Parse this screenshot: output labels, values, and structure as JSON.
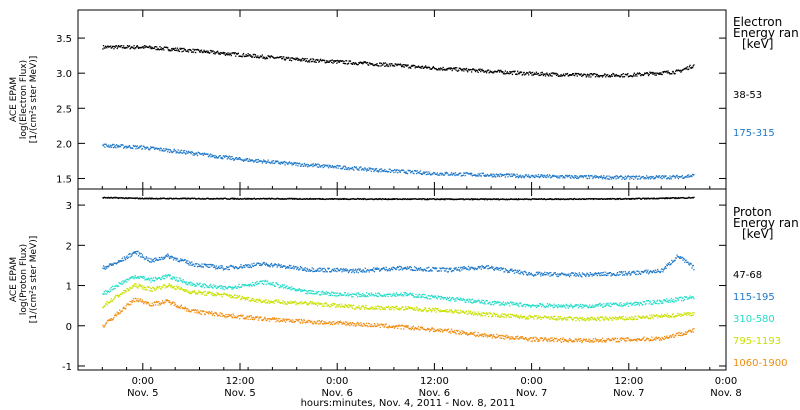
{
  "chart_data": [
    {
      "type": "scatter",
      "panel": "electron",
      "ylabel_lines": [
        "ACE EPAM",
        "log(Electron Flux)",
        "[1/(cm²s ster MeV)]"
      ],
      "ylim": [
        1.35,
        3.9
      ],
      "yticks": [
        1.5,
        2.0,
        2.5,
        3.0,
        3.5
      ],
      "ytick_labels": [
        "1.5",
        "2.0",
        "2.5",
        "3.0",
        "3.5"
      ],
      "legend_title_lines": [
        "Electron",
        "Energy ran",
        "[keV]"
      ],
      "series": [
        {
          "name": "38-53",
          "color": "#000000",
          "points": [
            [
              -5,
              3.38
            ],
            [
              0,
              3.38
            ],
            [
              6,
              3.33
            ],
            [
              12,
              3.27
            ],
            [
              18,
              3.21
            ],
            [
              24,
              3.17
            ],
            [
              30,
              3.13
            ],
            [
              36,
              3.08
            ],
            [
              42,
              3.04
            ],
            [
              48,
              3.0
            ],
            [
              54,
              2.98
            ],
            [
              60,
              2.98
            ],
            [
              66,
              3.03
            ],
            [
              68,
              3.12
            ]
          ]
        },
        {
          "name": "175-315",
          "color": "#1f78c8",
          "points": [
            [
              -5,
              1.98
            ],
            [
              0,
              1.95
            ],
            [
              6,
              1.87
            ],
            [
              12,
              1.78
            ],
            [
              18,
              1.72
            ],
            [
              24,
              1.67
            ],
            [
              30,
              1.62
            ],
            [
              36,
              1.58
            ],
            [
              42,
              1.56
            ],
            [
              48,
              1.54
            ],
            [
              54,
              1.53
            ],
            [
              60,
              1.52
            ],
            [
              66,
              1.53
            ],
            [
              68,
              1.55
            ]
          ]
        }
      ]
    },
    {
      "type": "scatter",
      "panel": "proton",
      "ylabel_lines": [
        "ACE EPAM",
        "log(Proton Flux)",
        "[1/(cm²s ster MeV)]"
      ],
      "ylim": [
        -1.1,
        3.4
      ],
      "yticks": [
        -1,
        0,
        1,
        2,
        3
      ],
      "ytick_labels": [
        "-1",
        "0",
        "1",
        "2",
        "3"
      ],
      "legend_title_lines": [
        "Proton",
        "Energy ran",
        "[keV]"
      ],
      "series": [
        {
          "name": "47-68",
          "color": "#000000",
          "points": [
            [
              -5,
              3.2
            ],
            [
              0,
              3.18
            ],
            [
              20,
              3.17
            ],
            [
              40,
              3.16
            ],
            [
              60,
              3.17
            ],
            [
              68,
              3.2
            ]
          ]
        },
        {
          "name": "115-195",
          "color": "#1f78c8",
          "points": [
            [
              -5,
              1.45
            ],
            [
              -3,
              1.6
            ],
            [
              -1,
              1.85
            ],
            [
              1,
              1.62
            ],
            [
              3,
              1.75
            ],
            [
              6,
              1.55
            ],
            [
              10,
              1.45
            ],
            [
              15,
              1.55
            ],
            [
              20,
              1.42
            ],
            [
              26,
              1.38
            ],
            [
              32,
              1.45
            ],
            [
              38,
              1.4
            ],
            [
              42,
              1.48
            ],
            [
              48,
              1.3
            ],
            [
              54,
              1.28
            ],
            [
              60,
              1.32
            ],
            [
              64,
              1.38
            ],
            [
              66,
              1.75
            ],
            [
              68,
              1.45
            ]
          ]
        },
        {
          "name": "310-580",
          "color": "#22ddc8",
          "points": [
            [
              -5,
              0.8
            ],
            [
              -3,
              1.05
            ],
            [
              -1,
              1.25
            ],
            [
              1,
              1.15
            ],
            [
              3,
              1.25
            ],
            [
              6,
              1.05
            ],
            [
              10,
              0.95
            ],
            [
              15,
              1.1
            ],
            [
              20,
              0.85
            ],
            [
              26,
              0.78
            ],
            [
              32,
              0.8
            ],
            [
              38,
              0.68
            ],
            [
              42,
              0.6
            ],
            [
              48,
              0.52
            ],
            [
              54,
              0.5
            ],
            [
              60,
              0.55
            ],
            [
              64,
              0.62
            ],
            [
              68,
              0.72
            ]
          ]
        },
        {
          "name": "795-1193",
          "color": "#c8e000",
          "points": [
            [
              -5,
              0.5
            ],
            [
              -3,
              0.78
            ],
            [
              -1,
              1.02
            ],
            [
              1,
              0.92
            ],
            [
              3,
              1.02
            ],
            [
              6,
              0.85
            ],
            [
              10,
              0.78
            ],
            [
              15,
              0.62
            ],
            [
              20,
              0.58
            ],
            [
              26,
              0.48
            ],
            [
              32,
              0.45
            ],
            [
              38,
              0.38
            ],
            [
              42,
              0.3
            ],
            [
              48,
              0.22
            ],
            [
              54,
              0.18
            ],
            [
              60,
              0.2
            ],
            [
              64,
              0.25
            ],
            [
              68,
              0.32
            ]
          ]
        },
        {
          "name": "1060-1900",
          "color": "#f08c10",
          "points": [
            [
              -5,
              0.0
            ],
            [
              -3,
              0.35
            ],
            [
              -1,
              0.68
            ],
            [
              1,
              0.55
            ],
            [
              3,
              0.62
            ],
            [
              6,
              0.38
            ],
            [
              10,
              0.28
            ],
            [
              15,
              0.18
            ],
            [
              20,
              0.12
            ],
            [
              26,
              0.06
            ],
            [
              32,
              -0.02
            ],
            [
              38,
              -0.12
            ],
            [
              42,
              -0.22
            ],
            [
              48,
              -0.32
            ],
            [
              54,
              -0.35
            ],
            [
              60,
              -0.33
            ],
            [
              64,
              -0.3
            ],
            [
              68,
              -0.1
            ]
          ]
        }
      ]
    }
  ],
  "x_axis": {
    "range_hours": [
      -8,
      72
    ],
    "tick_hours": [
      0,
      12,
      24,
      36,
      48,
      60,
      72
    ],
    "tick_labels_top": [
      "0:00",
      "12:00",
      "0:00",
      "12:00",
      "0:00",
      "12:00",
      "0:00"
    ],
    "tick_labels_bottom": [
      "Nov. 5",
      "Nov. 5",
      "Nov. 6",
      "Nov. 6",
      "Nov. 7",
      "Nov. 7",
      "Nov. 8"
    ],
    "xlabel": "hours:minutes, Nov.  4, 2011 - Nov.  8, 2011"
  }
}
